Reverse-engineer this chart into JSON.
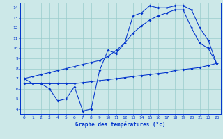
{
  "title": "Graphe des températures (°c)",
  "background_color": "#cce8e8",
  "grid_color": "#99cccc",
  "line_color": "#0033cc",
  "xlim": [
    -0.5,
    23.5
  ],
  "ylim": [
    3.5,
    14.5
  ],
  "xticks": [
    0,
    1,
    2,
    3,
    4,
    5,
    6,
    7,
    8,
    9,
    10,
    11,
    12,
    13,
    14,
    15,
    16,
    17,
    18,
    19,
    20,
    21,
    22,
    23
  ],
  "yticks": [
    4,
    5,
    6,
    7,
    8,
    9,
    10,
    11,
    12,
    13,
    14
  ],
  "line1_x": [
    0,
    1,
    2,
    3,
    4,
    5,
    6,
    7,
    8,
    9,
    10,
    11,
    12,
    13,
    14,
    15,
    16,
    17,
    18,
    19,
    20,
    21,
    22,
    23
  ],
  "line1_y": [
    7.0,
    6.5,
    6.5,
    6.0,
    4.8,
    5.0,
    6.2,
    3.8,
    4.0,
    7.8,
    9.8,
    9.5,
    10.5,
    13.2,
    13.5,
    14.2,
    14.0,
    14.0,
    14.2,
    14.2,
    13.8,
    12.0,
    10.8,
    8.5
  ],
  "line2_x": [
    0,
    1,
    2,
    3,
    4,
    5,
    6,
    7,
    8,
    9,
    10,
    11,
    12,
    13,
    14,
    15,
    16,
    17,
    18,
    19,
    20,
    21,
    22,
    23
  ],
  "line2_y": [
    7.0,
    7.2,
    7.4,
    7.6,
    7.8,
    8.0,
    8.2,
    8.4,
    8.6,
    8.8,
    9.2,
    9.8,
    10.5,
    11.5,
    12.2,
    12.8,
    13.2,
    13.5,
    13.8,
    13.8,
    12.0,
    10.5,
    10.0,
    8.5
  ],
  "line3_x": [
    0,
    1,
    2,
    3,
    4,
    5,
    6,
    7,
    8,
    9,
    10,
    11,
    12,
    13,
    14,
    15,
    16,
    17,
    18,
    19,
    20,
    21,
    22,
    23
  ],
  "line3_y": [
    6.5,
    6.5,
    6.5,
    6.5,
    6.5,
    6.5,
    6.5,
    6.6,
    6.7,
    6.8,
    6.9,
    7.0,
    7.1,
    7.2,
    7.3,
    7.4,
    7.5,
    7.6,
    7.8,
    7.9,
    8.0,
    8.1,
    8.3,
    8.5
  ]
}
